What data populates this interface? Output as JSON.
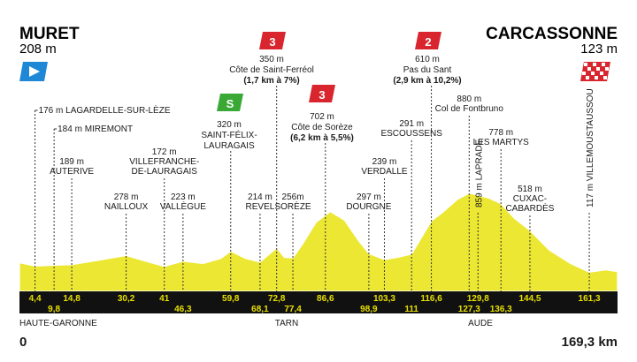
{
  "start": {
    "name": "MURET",
    "altitude": "208 m"
  },
  "finish": {
    "name": "CARCASSONNE",
    "altitude": "123 m"
  },
  "distance": {
    "start": "0",
    "end": "169,3 km"
  },
  "regions": [
    "HAUTE-GARONNE",
    "TARN",
    "AUDE"
  ],
  "climbs": [
    {
      "category": "3",
      "color": "#d9262e",
      "lines": [
        "350 m",
        "Côte de Saint-Ferréol",
        "(1,7 km à 7%)"
      ]
    },
    {
      "category": "2",
      "color": "#d9262e",
      "lines": [
        "610 m",
        "Pas du Sant",
        "(2,9 km à 10,2%)"
      ]
    },
    {
      "category": "3",
      "color": "#d9262e",
      "lines": [
        "702 m",
        "Côte de Sorèze",
        "(6,2 km à 5,5%)"
      ]
    }
  ],
  "sprint": {
    "label": "S",
    "color": "#3aa835",
    "lines": [
      "320 m",
      "SAINT-FÉLIX-",
      "LAURAGAIS"
    ]
  },
  "places": [
    {
      "km": 4.4,
      "lines": [
        "176 m LAGARDELLE-SUR-LÈZE"
      ]
    },
    {
      "km": 9.8,
      "lines": [
        "184 m MIREMONT"
      ]
    },
    {
      "km": 14.8,
      "lines": [
        "189 m",
        "AUTERIVE"
      ]
    },
    {
      "km": 30.2,
      "lines": [
        "278 m",
        "NAILLOUX"
      ]
    },
    {
      "km": 41,
      "lines": [
        "172 m",
        "VILLEFRANCHE-",
        "DE-LAURAGAIS"
      ]
    },
    {
      "km": 46.3,
      "lines": [
        "223 m",
        "VALLÈGUE"
      ]
    },
    {
      "km": 68.1,
      "lines": [
        "214 m",
        "REVEL"
      ]
    },
    {
      "km": 77.4,
      "lines": [
        "256m",
        "SORÈZE"
      ]
    },
    {
      "km": 98.9,
      "lines": [
        "297 m",
        "DOURGNE"
      ]
    },
    {
      "km": 103.3,
      "lines": [
        "239 m",
        "VERDALLE"
      ]
    },
    {
      "km": 111,
      "lines": [
        "291 m",
        "ESCOUSSENS"
      ]
    },
    {
      "km": 127.3,
      "lines": [
        "880 m",
        "Col de Fontbruno"
      ]
    },
    {
      "km": 129.8,
      "lines": [
        "859 m LAPRADE"
      ]
    },
    {
      "km": 136.3,
      "lines": [
        "778 m",
        "LES MARTYS"
      ]
    },
    {
      "km": 144.5,
      "lines": [
        "518 m",
        "CUXAC-",
        "CABARDÈS"
      ]
    },
    {
      "km": 161.3,
      "lines": [
        "117 m VILLEMOUSTAUSSOU"
      ]
    }
  ],
  "km_marks_top": [
    "4,4",
    "14,8",
    "30,2",
    "41",
    "59,8",
    "72,8",
    "86,6",
    "103,3",
    "116,6",
    "129,8",
    "144,5",
    "161,3"
  ],
  "km_marks_bottom": [
    "9,8",
    "46,3",
    "68,1",
    "77,4",
    "98,9",
    "111",
    "127,3",
    "136,3"
  ],
  "profile": {
    "total_km": 169.3,
    "points": [
      [
        0,
        208
      ],
      [
        4.4,
        176
      ],
      [
        9.8,
        184
      ],
      [
        14.8,
        189
      ],
      [
        22,
        230
      ],
      [
        30.2,
        278
      ],
      [
        36,
        220
      ],
      [
        41,
        172
      ],
      [
        46.3,
        223
      ],
      [
        52,
        200
      ],
      [
        57,
        250
      ],
      [
        59.8,
        320
      ],
      [
        64,
        250
      ],
      [
        68.1,
        214
      ],
      [
        72.8,
        350
      ],
      [
        75,
        260
      ],
      [
        77.4,
        256
      ],
      [
        80,
        380
      ],
      [
        84,
        600
      ],
      [
        88,
        702
      ],
      [
        92,
        620
      ],
      [
        96,
        420
      ],
      [
        98.9,
        297
      ],
      [
        103.3,
        239
      ],
      [
        107,
        260
      ],
      [
        111,
        291
      ],
      [
        116.6,
        610
      ],
      [
        120,
        700
      ],
      [
        124,
        820
      ],
      [
        127.3,
        880
      ],
      [
        129.8,
        859
      ],
      [
        133,
        830
      ],
      [
        136.3,
        778
      ],
      [
        140,
        640
      ],
      [
        144.5,
        518
      ],
      [
        150,
        330
      ],
      [
        156,
        200
      ],
      [
        161.3,
        117
      ],
      [
        166,
        140
      ],
      [
        169.3,
        123
      ]
    ],
    "max_alt": 1000
  }
}
